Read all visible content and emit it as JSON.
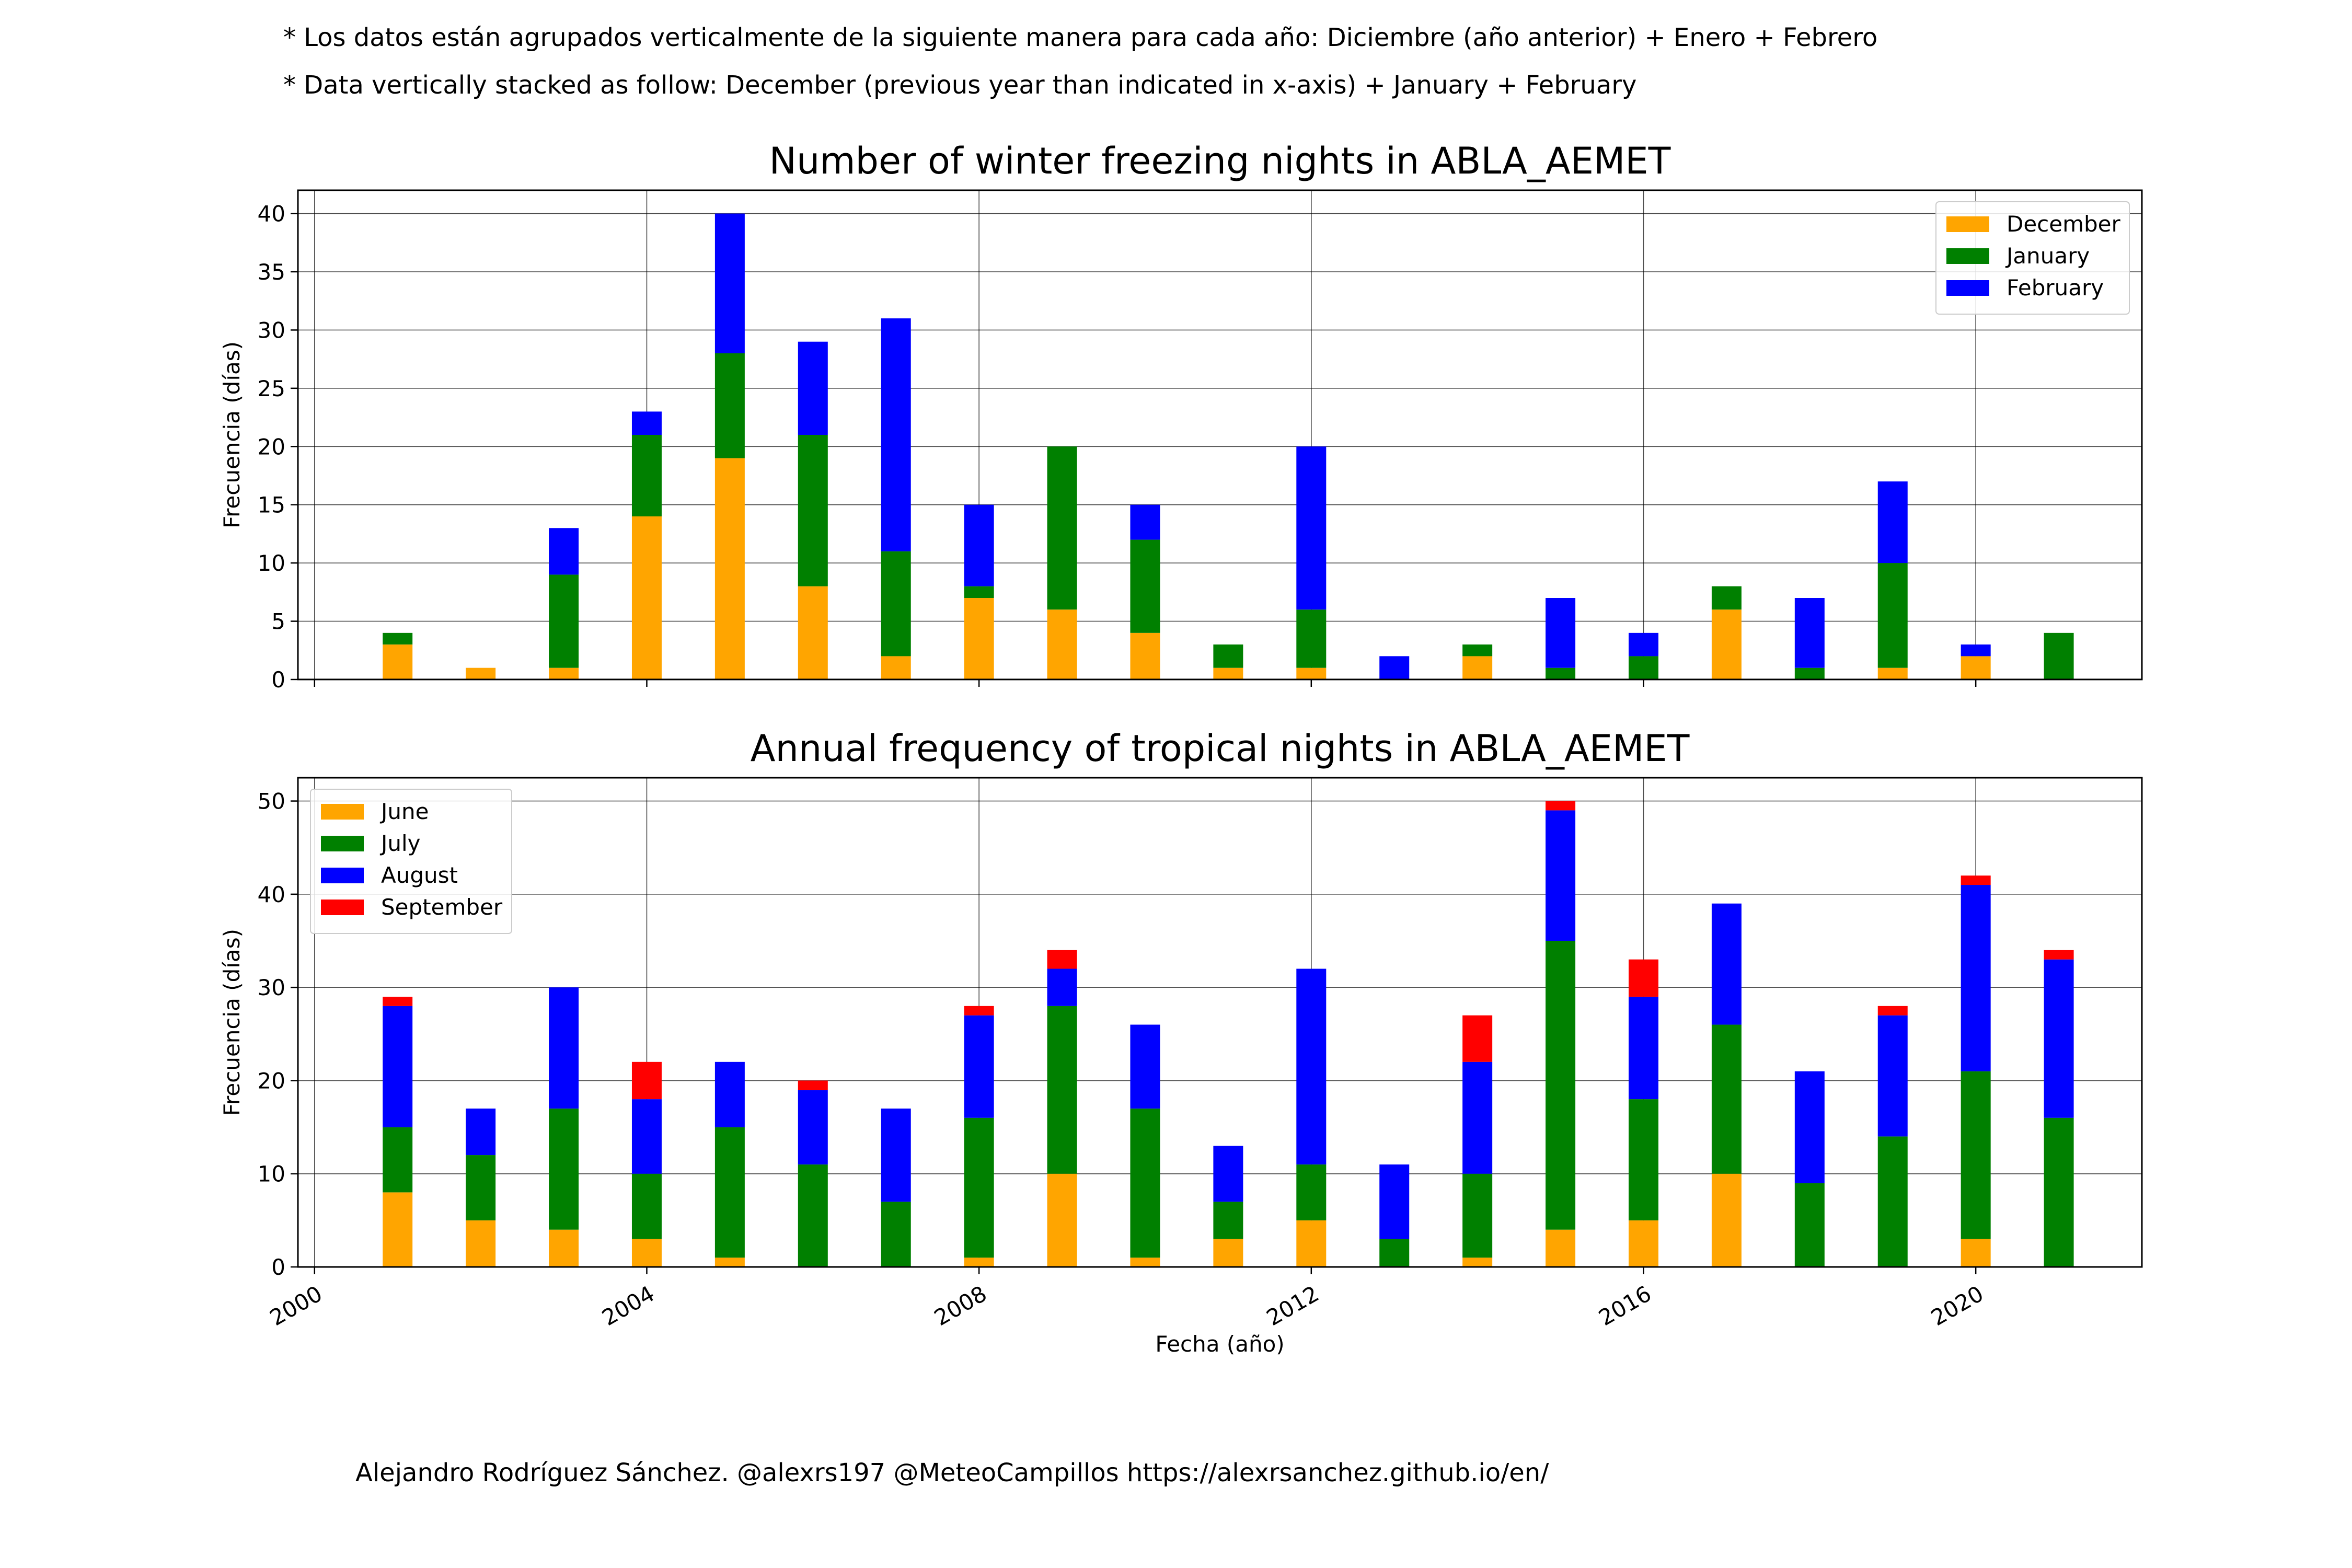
{
  "notes": {
    "spanish": "* Los datos están agrupados verticalmente de la siguiente manera para cada año: Diciembre (año anterior) + Enero  + Febrero",
    "english": "* Data vertically stacked as follow: December (previous year than indicated in x-axis) + January  + February"
  },
  "credits": "Alejandro Rodríguez Sánchez. @alexrs197 @MeteoCampillos   https://alexrsanchez.github.io/en/",
  "chart_data": [
    {
      "type": "bar",
      "stacked": true,
      "title": "Number of winter freezing nights in ABLA_AEMET",
      "ylabel": "Frecuencia (días)",
      "xlabel": "",
      "xlim": [
        1999.8,
        2022.0
      ],
      "ylim": [
        0,
        42
      ],
      "xticks": [
        2000,
        2004,
        2008,
        2012,
        2016,
        2020
      ],
      "show_xtick_labels": false,
      "yticks": [
        0,
        5,
        10,
        15,
        20,
        25,
        30,
        35,
        40
      ],
      "grid": true,
      "legend_position": "top-right",
      "colors": {
        "December": "#ffa500",
        "January": "#008000",
        "February": "#0000ff"
      },
      "x": [
        2001,
        2002,
        2003,
        2004,
        2005,
        2006,
        2007,
        2008,
        2009,
        2010,
        2011,
        2012,
        2013,
        2014,
        2015,
        2016,
        2017,
        2018,
        2019,
        2020,
        2021
      ],
      "series": [
        {
          "name": "December",
          "values": [
            3,
            1,
            1,
            14,
            19,
            8,
            2,
            7,
            6,
            4,
            1,
            1,
            0,
            2,
            0,
            0,
            6,
            0,
            1,
            2,
            0
          ]
        },
        {
          "name": "January",
          "values": [
            1,
            0,
            8,
            7,
            9,
            13,
            9,
            1,
            14,
            8,
            2,
            5,
            0,
            1,
            1,
            2,
            2,
            1,
            9,
            0,
            4
          ]
        },
        {
          "name": "February",
          "values": [
            0,
            0,
            4,
            2,
            12,
            8,
            20,
            7,
            0,
            3,
            0,
            14,
            2,
            0,
            6,
            2,
            0,
            6,
            7,
            1,
            0
          ]
        }
      ]
    },
    {
      "type": "bar",
      "stacked": true,
      "title": "Annual frequency of tropical nights in ABLA_AEMET",
      "ylabel": "Frecuencia (días)",
      "xlabel": "Fecha (año)",
      "xlim": [
        1999.8,
        2022.0
      ],
      "ylim": [
        0,
        52.5
      ],
      "xticks": [
        2000,
        2004,
        2008,
        2012,
        2016,
        2020
      ],
      "xtick_labels": [
        "2000",
        "2004",
        "2008",
        "2012",
        "2016",
        "2020"
      ],
      "show_xtick_labels": true,
      "yticks": [
        0,
        10,
        20,
        30,
        40,
        50
      ],
      "grid": true,
      "legend_position": "top-left",
      "colors": {
        "June": "#ffa500",
        "July": "#008000",
        "August": "#0000ff",
        "September": "#ff0000"
      },
      "x": [
        2001,
        2002,
        2003,
        2004,
        2005,
        2006,
        2007,
        2008,
        2009,
        2010,
        2011,
        2012,
        2013,
        2014,
        2015,
        2016,
        2017,
        2018,
        2019,
        2020,
        2021
      ],
      "series": [
        {
          "name": "June",
          "values": [
            8,
            5,
            4,
            3,
            1,
            0,
            0,
            1,
            10,
            1,
            3,
            5,
            0,
            1,
            4,
            5,
            10,
            0,
            0,
            3,
            0
          ]
        },
        {
          "name": "July",
          "values": [
            7,
            7,
            13,
            7,
            14,
            11,
            7,
            15,
            18,
            16,
            4,
            6,
            3,
            9,
            31,
            13,
            16,
            9,
            14,
            18,
            16
          ]
        },
        {
          "name": "August",
          "values": [
            13,
            5,
            13,
            8,
            7,
            8,
            10,
            11,
            4,
            9,
            6,
            21,
            8,
            12,
            14,
            11,
            13,
            12,
            13,
            20,
            17
          ]
        },
        {
          "name": "September",
          "values": [
            1,
            0,
            0,
            4,
            0,
            1,
            0,
            1,
            2,
            0,
            0,
            0,
            0,
            5,
            1,
            4,
            0,
            0,
            1,
            1,
            1
          ]
        }
      ]
    }
  ]
}
